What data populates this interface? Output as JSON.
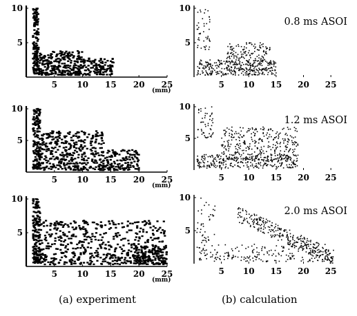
{
  "captions": {
    "left": "(a) experiment",
    "right": "(b) calculation"
  },
  "colors": {
    "points": "#000000",
    "background": "#ffffff"
  },
  "chart_data": [
    {
      "id": "exp-0.8",
      "type": "scatter",
      "column": "experiment",
      "unit_label": "(mm)",
      "xlim": [
        0,
        25
      ],
      "ylim": [
        0,
        10
      ],
      "x_ticks": [
        "5",
        "10",
        "15",
        "20",
        "25"
      ],
      "y_ticks": [
        "5",
        "10"
      ],
      "density": "dense",
      "clusters": [
        {
          "x": [
            1.2,
            2.2
          ],
          "y": [
            0.5,
            10
          ],
          "count": 160
        },
        {
          "x": [
            2.2,
            10
          ],
          "y": [
            0.3,
            3.8
          ],
          "count": 280
        },
        {
          "x": [
            10,
            15.5
          ],
          "y": [
            0.3,
            2.8
          ],
          "count": 120
        }
      ]
    },
    {
      "id": "calc-0.8",
      "type": "scatter",
      "column": "calculation",
      "time_label": "0.8 ms ASOI",
      "xlim": [
        0,
        27
      ],
      "ylim": [
        0,
        10
      ],
      "x_ticks": [
        "5",
        "10",
        "15",
        "20",
        "25"
      ],
      "y_ticks": [
        "5",
        "10"
      ],
      "density": "sparse",
      "clusters": [
        {
          "x": [
            0.5,
            3
          ],
          "y": [
            4,
            10
          ],
          "count": 45
        },
        {
          "x": [
            0.5,
            15
          ],
          "y": [
            0.3,
            2.5
          ],
          "count": 300
        },
        {
          "x": [
            6,
            14
          ],
          "y": [
            1,
            5
          ],
          "count": 170
        }
      ]
    },
    {
      "id": "exp-1.2",
      "type": "scatter",
      "column": "experiment",
      "unit_label": "(mm)",
      "xlim": [
        0,
        25
      ],
      "ylim": [
        0,
        10
      ],
      "x_ticks": [
        "5",
        "10",
        "15",
        "20",
        "25"
      ],
      "y_ticks": [
        "5",
        "10"
      ],
      "density": "dense",
      "clusters": [
        {
          "x": [
            1.2,
            2.5
          ],
          "y": [
            0.5,
            10
          ],
          "count": 160
        },
        {
          "x": [
            2.5,
            14
          ],
          "y": [
            0.3,
            6.5
          ],
          "count": 380
        },
        {
          "x": [
            14,
            20
          ],
          "y": [
            0.3,
            3.5
          ],
          "count": 140
        }
      ]
    },
    {
      "id": "calc-1.2",
      "type": "scatter",
      "column": "calculation",
      "time_label": "1.2 ms ASOI",
      "xlim": [
        0,
        27
      ],
      "ylim": [
        0,
        10
      ],
      "x_ticks": [
        "5",
        "10",
        "15",
        "20",
        "25"
      ],
      "y_ticks": [
        "5",
        "10"
      ],
      "density": "sparse",
      "clusters": [
        {
          "x": [
            0.5,
            3.5
          ],
          "y": [
            5,
            10
          ],
          "count": 50
        },
        {
          "x": [
            0.5,
            19
          ],
          "y": [
            0.3,
            2.5
          ],
          "count": 300
        },
        {
          "x": [
            5,
            19
          ],
          "y": [
            1.5,
            6.8
          ],
          "count": 330
        }
      ]
    },
    {
      "id": "exp-2.0",
      "type": "scatter",
      "column": "experiment",
      "unit_label": "(mm)",
      "xlim": [
        0,
        25
      ],
      "ylim": [
        0,
        10
      ],
      "x_ticks": [
        "5",
        "10",
        "15",
        "20",
        "25"
      ],
      "y_ticks": [
        "5",
        "10"
      ],
      "density": "dense",
      "clusters": [
        {
          "x": [
            1.2,
            2.5
          ],
          "y": [
            0.5,
            10
          ],
          "count": 170
        },
        {
          "x": [
            2.5,
            25
          ],
          "y": [
            0.3,
            6.8
          ],
          "count": 560
        },
        {
          "x": [
            19,
            25
          ],
          "y": [
            0.3,
            3
          ],
          "count": 120
        }
      ]
    },
    {
      "id": "calc-2.0",
      "type": "scatter",
      "column": "calculation",
      "time_label": "2.0 ms ASOI",
      "xlim": [
        0,
        27
      ],
      "ylim": [
        0,
        10
      ],
      "x_ticks": [
        "5",
        "10",
        "15",
        "20",
        "25"
      ],
      "y_ticks": [
        "5",
        "10"
      ],
      "density": "sparse",
      "clusters": [
        {
          "x": [
            0.5,
            4
          ],
          "y": [
            3,
            10
          ],
          "count": 40
        },
        {
          "x": [
            0.5,
            25
          ],
          "y": [
            0.3,
            3
          ],
          "count": 200
        },
        {
          "x": [
            8,
            25.5
          ],
          "y": [
            0.5,
            7.5
          ],
          "count": 300,
          "band": true
        }
      ]
    }
  ]
}
